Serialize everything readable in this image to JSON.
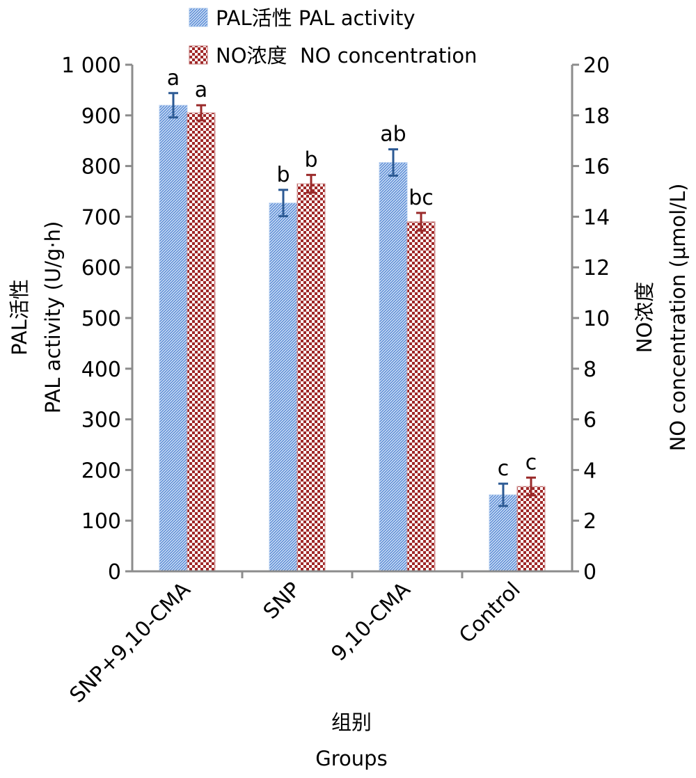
{
  "chart_data": {
    "type": "bar",
    "categories": [
      "SNP+9,10-CMA",
      "SNP",
      "9,10-CMA",
      "Control"
    ],
    "series": [
      {
        "name": "PAL活性 PAL activity",
        "axis": "left",
        "color": "#4a7fd0",
        "values": [
          920,
          727,
          807,
          151
        ],
        "errors": [
          24,
          26,
          26,
          22
        ],
        "letters": [
          "a",
          "b",
          "ab",
          "c"
        ]
      },
      {
        "name": "NO浓度  NO concentration",
        "axis": "right",
        "color": "#a02828",
        "values": [
          18.1,
          15.3,
          13.8,
          3.35
        ],
        "errors": [
          0.3,
          0.35,
          0.35,
          0.35
        ],
        "letters": [
          "a",
          "b",
          "bc",
          "c"
        ]
      }
    ],
    "left_axis": {
      "label_cn": "PAL活性",
      "label_en": "PAL activity (U/g·h)",
      "ylim": [
        0,
        1000
      ],
      "ticks": [
        "0",
        "100",
        "200",
        "300",
        "400",
        "500",
        "600",
        "700",
        "800",
        "900",
        "1 000"
      ]
    },
    "right_axis": {
      "label_cn": "NO浓度",
      "label_en": "NO concentration (μmol/L)",
      "ylim": [
        0,
        20
      ],
      "ticks": [
        "0",
        "2",
        "4",
        "6",
        "8",
        "10",
        "12",
        "14",
        "16",
        "18",
        "20"
      ]
    },
    "xlabel_cn": "组别",
    "xlabel_en": "Groups",
    "legend_position": "top",
    "grid": false,
    "error_bar_colors": [
      "#2c5a94",
      "#9a2a2a"
    ]
  }
}
